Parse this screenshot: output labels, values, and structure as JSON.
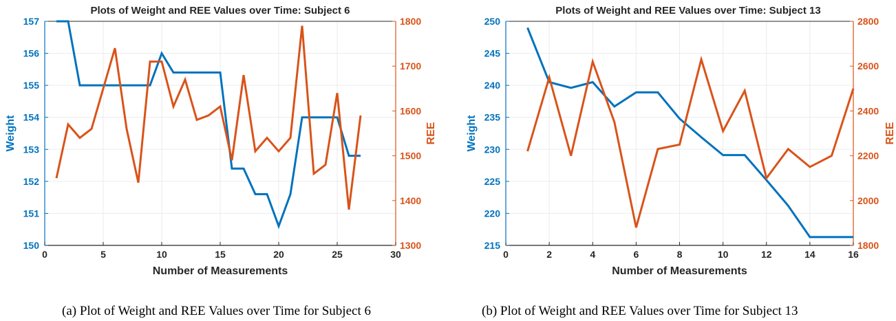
{
  "colors": {
    "weight": "#0072BD",
    "ree": "#D95319",
    "axis": "#262626",
    "grid": "#ebebeb"
  },
  "chart_data": [
    {
      "type": "line",
      "title": "Plots of Weight and REE Values over Time: Subject 6",
      "xlabel": "Number of Measurements",
      "ylabel_left": "Weight",
      "ylabel_right": "REE",
      "xlim": [
        0,
        30
      ],
      "xticks": [
        "0",
        "5",
        "10",
        "15",
        "20",
        "25",
        "30"
      ],
      "ylim_left": [
        150,
        157
      ],
      "yticks_left": [
        "150",
        "151",
        "152",
        "153",
        "154",
        "155",
        "156",
        "157"
      ],
      "ylim_right": [
        1300,
        1800
      ],
      "yticks_right": [
        "1300",
        "1400",
        "1500",
        "1600",
        "1700",
        "1800"
      ],
      "grid": true,
      "caption": "(a)  Plot of Weight and REE Values over Time for Subject 6",
      "series": [
        {
          "axis": "left",
          "x": [
            1,
            2,
            3,
            4,
            5,
            6,
            7,
            8,
            9,
            10,
            11,
            12,
            13,
            14,
            15,
            16,
            17,
            18,
            19,
            20,
            21,
            22,
            23,
            24,
            25,
            26,
            27
          ],
          "y": [
            157,
            157,
            155,
            155,
            155,
            155,
            155,
            155,
            155,
            156,
            155.4,
            155.4,
            155.4,
            155.4,
            155.4,
            152.4,
            152.4,
            151.6,
            151.6,
            150.6,
            151.6,
            154,
            154,
            154,
            154,
            152.8,
            152.8
          ]
        },
        {
          "axis": "right",
          "x": [
            1,
            2,
            3,
            4,
            5,
            6,
            7,
            8,
            9,
            10,
            11,
            12,
            13,
            14,
            15,
            16,
            17,
            18,
            19,
            20,
            21,
            22,
            23,
            24,
            25,
            26,
            27
          ],
          "y": [
            1450,
            1570,
            1540,
            1560,
            1650,
            1740,
            1560,
            1440,
            1710,
            1710,
            1610,
            1670,
            1580,
            1590,
            1610,
            1490,
            1680,
            1510,
            1540,
            1510,
            1540,
            1790,
            1460,
            1480,
            1640,
            1380,
            1590
          ]
        }
      ]
    },
    {
      "type": "line",
      "title": "Plots of Weight and REE Values over Time: Subject 13",
      "xlabel": "Number of Measurements",
      "ylabel_left": "Weight",
      "ylabel_right": "REE",
      "xlim": [
        0,
        16
      ],
      "xticks": [
        "0",
        "2",
        "4",
        "6",
        "8",
        "10",
        "12",
        "14",
        "16"
      ],
      "ylim_left": [
        215,
        250
      ],
      "yticks_left": [
        "215",
        "220",
        "225",
        "230",
        "235",
        "240",
        "245",
        "250"
      ],
      "ylim_right": [
        1800,
        2800
      ],
      "yticks_right": [
        "1800",
        "2000",
        "2200",
        "2400",
        "2600",
        "2800"
      ],
      "grid": true,
      "caption": "(b)  Plot of Weight and REE Values over Time for Subject 13",
      "series": [
        {
          "axis": "left",
          "x": [
            1,
            2,
            3,
            4,
            5,
            6,
            7,
            8,
            9,
            10,
            11,
            12,
            13,
            14,
            15,
            16
          ],
          "y": [
            249,
            240.5,
            239.6,
            240.5,
            236.7,
            238.9,
            238.9,
            234.8,
            231.9,
            229.1,
            229.1,
            225.2,
            221.2,
            216.3,
            216.3,
            216.3
          ]
        },
        {
          "axis": "right",
          "x": [
            1,
            2,
            3,
            4,
            5,
            6,
            7,
            8,
            9,
            10,
            11,
            12,
            13,
            14,
            15,
            16
          ],
          "y": [
            2220,
            2550,
            2200,
            2620,
            2350,
            1880,
            2230,
            2250,
            2630,
            2310,
            2490,
            2100,
            2230,
            2150,
            2200,
            2500
          ]
        }
      ]
    }
  ]
}
